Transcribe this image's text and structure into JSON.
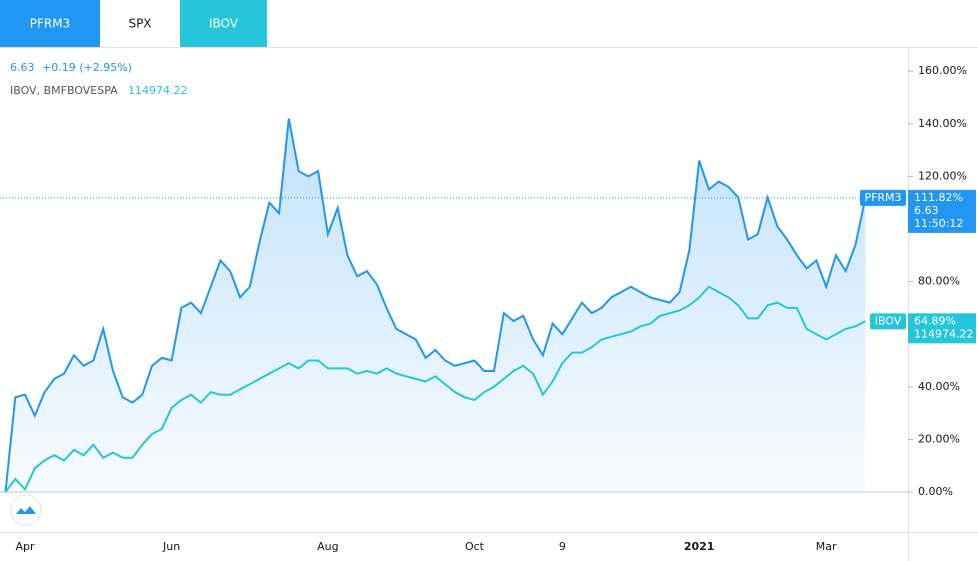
{
  "tabs": [
    "PFRM3",
    "SPX",
    "IBOV"
  ],
  "legend": {
    "main_price": "6.63",
    "main_change": "+0.19 (+2.95%)",
    "compare_name": "IBOV, BMFBOVESPA",
    "compare_price": "114974.22"
  },
  "chart_data": {
    "type": "line",
    "categories": [
      null,
      null,
      "Apr",
      null,
      null,
      null,
      null,
      null,
      null,
      null,
      null,
      null,
      null,
      null,
      null,
      null,
      null,
      "Jun",
      null,
      null,
      null,
      null,
      null,
      null,
      null,
      null,
      null,
      null,
      null,
      null,
      null,
      null,
      null,
      "Aug",
      null,
      null,
      null,
      null,
      null,
      null,
      null,
      null,
      null,
      null,
      null,
      null,
      null,
      null,
      "Oct",
      null,
      null,
      null,
      null,
      null,
      null,
      null,
      null,
      "9",
      null,
      null,
      null,
      null,
      null,
      null,
      null,
      null,
      null,
      null,
      null,
      null,
      null,
      "2021",
      null,
      null,
      null,
      null,
      null,
      null,
      null,
      null,
      null,
      null,
      null,
      null,
      "Mar",
      null,
      null,
      null,
      null
    ],
    "series": [
      {
        "name": "PFRM3",
        "color": "#2196f3",
        "fill": true,
        "last_label": "111.82%",
        "price": "6.63",
        "time": "11:50:12",
        "values": [
          0,
          36,
          37,
          29,
          38,
          43,
          45,
          52,
          48,
          50,
          62,
          46,
          36,
          34,
          37,
          48,
          51,
          50,
          70,
          72,
          68,
          78,
          88,
          84,
          74,
          78,
          95,
          110,
          106,
          142,
          122,
          120,
          122,
          98,
          108,
          90,
          82,
          84,
          79,
          70,
          62,
          60,
          58,
          51,
          54,
          50,
          48,
          49,
          50,
          46,
          46,
          68,
          65,
          67,
          58,
          52,
          64,
          60,
          66,
          72,
          68,
          70,
          74,
          76,
          78,
          76,
          74,
          73,
          72,
          76,
          92,
          126,
          115,
          118,
          116,
          112,
          96,
          98,
          112,
          101,
          96,
          90,
          85,
          88,
          78,
          90,
          84,
          94,
          111.82
        ]
      },
      {
        "name": "IBOV",
        "color": "#26c6da",
        "fill": false,
        "last_label": "64.89%",
        "price": "114974.22",
        "values": [
          0,
          5,
          1,
          9,
          12,
          14,
          12,
          16,
          14,
          18,
          13,
          15,
          13,
          13,
          18,
          22,
          24,
          32,
          35,
          37,
          34,
          38,
          37,
          37,
          39,
          41,
          43,
          45,
          47,
          49,
          47,
          50,
          50,
          47,
          47,
          47,
          45,
          46,
          45,
          47,
          45,
          44,
          43,
          42,
          44,
          41,
          38,
          36,
          35,
          38,
          40,
          43,
          46,
          48,
          45,
          37,
          42,
          49,
          53,
          53,
          55,
          58,
          59,
          60,
          61,
          63,
          64,
          67,
          68,
          69,
          71,
          74,
          78,
          76,
          74,
          71,
          66,
          66,
          71,
          72,
          70,
          70,
          62,
          60,
          58,
          60,
          62,
          63,
          64.89
        ]
      }
    ],
    "ylim": [
      -15.2,
      168.8
    ],
    "yticks": [
      {
        "value": 0,
        "label": "0.00%"
      },
      {
        "value": 20,
        "label": "20.00%"
      },
      {
        "value": 40,
        "label": "40.00%"
      },
      {
        "value": 80,
        "label": "80.00%"
      },
      {
        "value": 120,
        "label": "120.00%"
      },
      {
        "value": 140,
        "label": "140.00%"
      },
      {
        "value": 160,
        "label": "160.00%"
      }
    ]
  }
}
